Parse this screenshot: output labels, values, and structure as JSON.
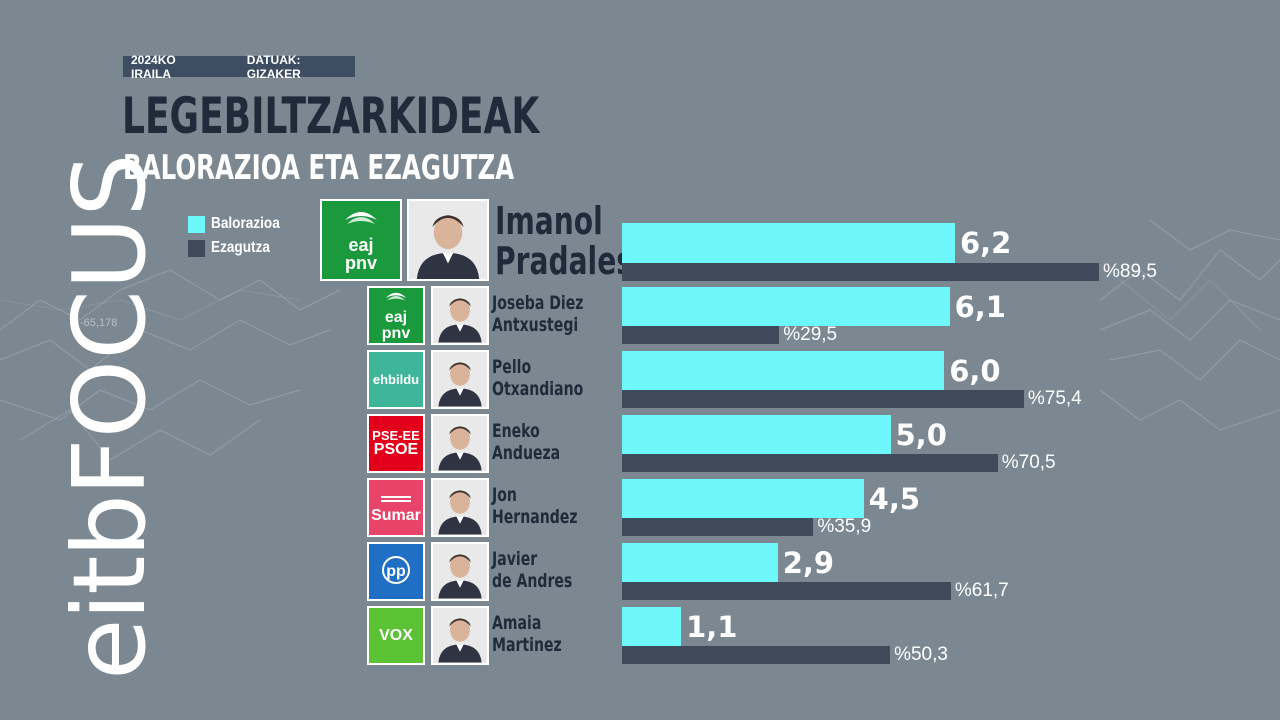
{
  "brand": {
    "logo_text": "eitbFOCUS"
  },
  "header": {
    "date_tag": "2024KO IRAILA",
    "source_tag": "DATUAK: GIZAKER",
    "title": "LEGEBILTZARKIDEAK",
    "subtitle": "BALORAZIOA ETA EZAGUTZA"
  },
  "colors": {
    "valuation": "#6ef7fa",
    "knowledge": "#414a5b",
    "title": "#1f2b3b",
    "background": "#7b8791"
  },
  "background_labels": {
    "left": "-65,178"
  },
  "chart_data": {
    "type": "bar",
    "orientation": "horizontal",
    "title": "LEGEBILTZARKIDEAK",
    "subtitle": "BALORAZIOA ETA EZAGUTZA",
    "legend": [
      "Balorazioa",
      "Ezagutza"
    ],
    "legend_position": "top-left",
    "grid": false,
    "series": [
      {
        "name": "Balorazioa",
        "values": [
          6.2,
          6.1,
          6.0,
          5.0,
          4.5,
          2.9,
          1.1
        ],
        "labels": [
          "6,2",
          "6,1",
          "6,0",
          "5,0",
          "4,5",
          "2,9",
          "1,1"
        ]
      },
      {
        "name": "Ezagutza",
        "values": [
          89.5,
          29.5,
          75.4,
          70.5,
          35.9,
          61.7,
          50.3
        ],
        "labels": [
          "%89,5",
          "%29,5",
          "%75,4",
          "%70,5",
          "%35,9",
          "%61,7",
          "%50,3"
        ]
      }
    ],
    "candidates": [
      {
        "first": "Imanol",
        "last": "Pradales",
        "party": "EAJ-PNV",
        "logo_lines": [
          "eaj",
          "pnv"
        ],
        "logo_color": "#1a9a3c",
        "logo_icon": "eaj-pnv-swirl-icon"
      },
      {
        "first": "Joseba Diez",
        "last": "Antxustegi",
        "party": "EAJ-PNV",
        "logo_lines": [
          "eaj",
          "pnv"
        ],
        "logo_color": "#1a9a3c",
        "logo_icon": "eaj-pnv-swirl-icon"
      },
      {
        "first": "Pello",
        "last": "Otxandiano",
        "party": "EH Bildu",
        "logo_lines": [
          "ehbildu"
        ],
        "logo_color": "#3fb59a",
        "logo_icon": ""
      },
      {
        "first": "Eneko",
        "last": "Andueza",
        "party": "PSE-EE PSOE",
        "logo_lines": [
          "PSE-EE",
          "PSOE"
        ],
        "logo_color": "#e3001b",
        "logo_icon": ""
      },
      {
        "first": "Jon",
        "last": "Hernandez",
        "party": "Sumar",
        "logo_lines": [
          "Sumar"
        ],
        "logo_color": "#e8446a",
        "logo_icon": "sumar-stripes-icon"
      },
      {
        "first": "Javier",
        "last": "de Andres",
        "party": "PP",
        "logo_lines": [
          "pp"
        ],
        "logo_color": "#1f6fc4",
        "logo_icon": "pp-circle-icon"
      },
      {
        "first": "Amaia",
        "last": "Martinez",
        "party": "Vox",
        "logo_lines": [
          "VOX"
        ],
        "logo_color": "#5bc236",
        "logo_icon": ""
      }
    ]
  }
}
